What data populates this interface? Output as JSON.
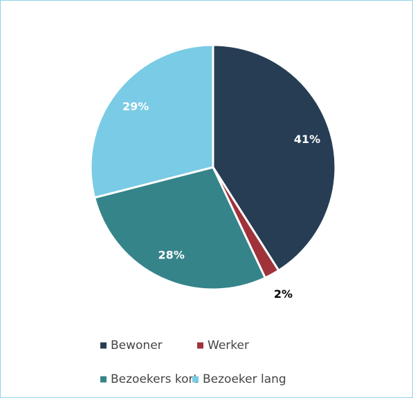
{
  "chart_data": {
    "type": "pie",
    "categories": [
      "Bewoner",
      "Werker",
      "Bezoekers kort",
      "Bezoeker lang"
    ],
    "values": [
      41,
      2,
      28,
      29
    ],
    "value_labels": [
      "41%",
      "2%",
      "28%",
      "29%"
    ],
    "colors": [
      "#263d54",
      "#a0323a",
      "#35848a",
      "#7acbe5"
    ],
    "legend": "bottom"
  }
}
